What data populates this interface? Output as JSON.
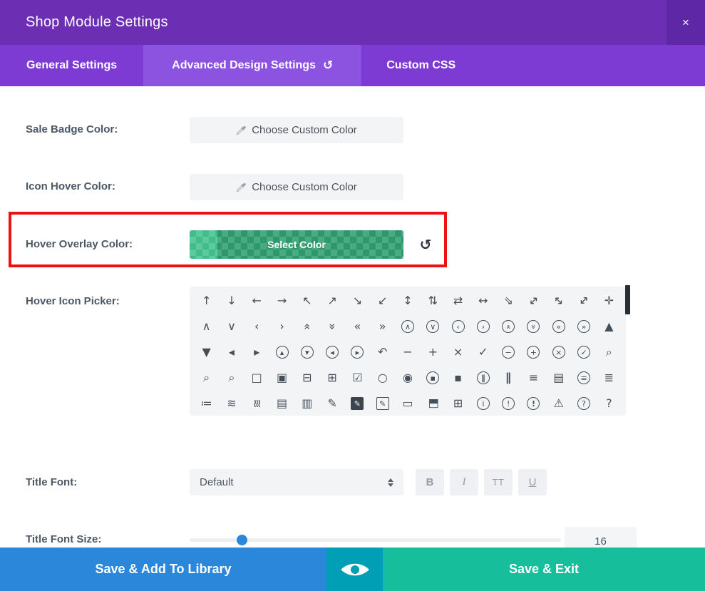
{
  "header": {
    "title": "Shop Module Settings",
    "close_glyph": "×"
  },
  "tabs": [
    {
      "label": "General Settings",
      "active": false
    },
    {
      "label": "Advanced Design Settings",
      "active": true,
      "reset_glyph": "↺"
    },
    {
      "label": "Custom CSS",
      "active": false
    }
  ],
  "colors": {
    "header-purple": "#6c2eb2",
    "close-purple": "#5e27a6",
    "tabbar-purple": "#7d3bd3",
    "active-tab-purple": "#8c52e0",
    "highlight-red": "#ed1212",
    "swatch-green": "#2f9d6f",
    "swatch-light": "#43c28e",
    "footer-blue": "#2b87da",
    "footer-teal": "#009fb5",
    "footer-green": "#17be9b",
    "slider-blue": "#2b87da"
  },
  "rows": {
    "sale_badge": {
      "label": "Sale Badge Color:",
      "button": "Choose Custom Color"
    },
    "icon_hover": {
      "label": "Icon Hover Color:",
      "button": "Choose Custom Color"
    },
    "hover_overlay": {
      "label": "Hover Overlay Color:",
      "button": "Select Color",
      "reset_glyph": "↺"
    },
    "icon_picker": {
      "label": "Hover Icon Picker:"
    },
    "title_font": {
      "label": "Title Font:",
      "value": "Default",
      "style_buttons": {
        "bold": "B",
        "italic": "I",
        "caps": "TT",
        "underline": "U"
      }
    },
    "title_font_size": {
      "label": "Title Font Size:",
      "value": "16",
      "slider_percent": 14
    }
  },
  "icon_picker": {
    "icons": [
      {
        "n": "arrow-up",
        "g": "↑"
      },
      {
        "n": "arrow-down",
        "g": "↓"
      },
      {
        "n": "arrow-left",
        "g": "←"
      },
      {
        "n": "arrow-right",
        "g": "→"
      },
      {
        "n": "arrow-up-left",
        "g": "↖"
      },
      {
        "n": "arrow-up-right",
        "g": "↗"
      },
      {
        "n": "arrow-down-right",
        "g": "↘"
      },
      {
        "n": "arrow-down-left",
        "g": "↙"
      },
      {
        "n": "arrow-up-down",
        "g": "↕"
      },
      {
        "n": "arrow-up-down-alt",
        "g": "⇅"
      },
      {
        "n": "arrow-left-right-small",
        "g": "⇄"
      },
      {
        "n": "arrow-left-right",
        "g": "↔"
      },
      {
        "n": "arrow-diagonal-down-right",
        "g": "⇘"
      },
      {
        "n": "expand-diagonal",
        "g": "↔",
        "r": -45
      },
      {
        "n": "contract-diagonal",
        "g": "↔",
        "r": 45
      },
      {
        "n": "expand-diagonal-alt",
        "g": "↕",
        "r": 45
      },
      {
        "n": "move",
        "g": "✛"
      },
      {
        "n": "chevron-up",
        "g": "∧"
      },
      {
        "n": "chevron-down",
        "g": "∨"
      },
      {
        "n": "chevron-left",
        "g": "‹"
      },
      {
        "n": "chevron-right",
        "g": "›"
      },
      {
        "n": "chevrons-up",
        "g": "«",
        "r": 90
      },
      {
        "n": "chevrons-down",
        "g": "»",
        "r": 90
      },
      {
        "n": "chevrons-left",
        "g": "«"
      },
      {
        "n": "chevrons-right",
        "g": "»"
      },
      {
        "n": "chevron-up-circle",
        "g": "∧",
        "c": 1
      },
      {
        "n": "chevron-down-circle",
        "g": "∨",
        "c": 1
      },
      {
        "n": "chevron-left-circle",
        "g": "‹",
        "c": 1
      },
      {
        "n": "chevron-right-circle",
        "g": "›",
        "c": 1
      },
      {
        "n": "chevrons-up-circle",
        "g": "«",
        "r": 90,
        "c": 1
      },
      {
        "n": "chevrons-down-circle",
        "g": "»",
        "r": 90,
        "c": 1
      },
      {
        "n": "chevrons-left-circle",
        "g": "«",
        "c": 1
      },
      {
        "n": "chevrons-right-circle",
        "g": "»",
        "c": 1
      },
      {
        "n": "caret-up",
        "g": "▲"
      },
      {
        "n": "caret-down",
        "g": "▼"
      },
      {
        "n": "caret-left",
        "g": "◂"
      },
      {
        "n": "caret-right",
        "g": "▸"
      },
      {
        "n": "caret-up-circle",
        "g": "▴",
        "c": 1
      },
      {
        "n": "caret-down-circle",
        "g": "▾",
        "c": 1
      },
      {
        "n": "caret-left-circle",
        "g": "◂",
        "c": 1
      },
      {
        "n": "caret-right-circle",
        "g": "▸",
        "c": 1
      },
      {
        "n": "undo",
        "g": "↶"
      },
      {
        "n": "minus",
        "g": "−"
      },
      {
        "n": "plus",
        "g": "+"
      },
      {
        "n": "close",
        "g": "×"
      },
      {
        "n": "check",
        "g": "✓"
      },
      {
        "n": "minus-circle",
        "g": "−",
        "c": 1
      },
      {
        "n": "plus-circle",
        "g": "+",
        "c": 1
      },
      {
        "n": "close-circle",
        "g": "×",
        "c": 1
      },
      {
        "n": "check-circle",
        "g": "✓",
        "c": 1
      },
      {
        "n": "zoom-out",
        "g": "⌕"
      },
      {
        "n": "zoom-in",
        "g": "⌕"
      },
      {
        "n": "search",
        "g": "⌕"
      },
      {
        "n": "square",
        "g": "□"
      },
      {
        "n": "square-filled",
        "g": "▣"
      },
      {
        "n": "square-minus",
        "g": "⊟"
      },
      {
        "n": "square-plus",
        "g": "⊞"
      },
      {
        "n": "checkbox",
        "g": "☑"
      },
      {
        "n": "circle",
        "g": "○"
      },
      {
        "n": "radio",
        "g": "◉"
      },
      {
        "n": "stop-circle",
        "g": "▪",
        "c": 1
      },
      {
        "n": "square-small",
        "g": "▪"
      },
      {
        "n": "pause-circle",
        "g": "∥",
        "c": 1,
        "w": 1
      },
      {
        "n": "pause",
        "g": "∥",
        "w": 1
      },
      {
        "n": "menu",
        "g": "≡"
      },
      {
        "n": "text-document",
        "g": "▤"
      },
      {
        "n": "menu-circle",
        "g": "≡",
        "c": 1
      },
      {
        "n": "list",
        "g": "≣"
      },
      {
        "n": "list-ordered",
        "g": "≔"
      },
      {
        "n": "sliders-horizontal",
        "g": "≋"
      },
      {
        "n": "sliders-vertical",
        "g": "≋",
        "r": 90
      },
      {
        "n": "document",
        "g": "▤"
      },
      {
        "n": "documents",
        "g": "▥"
      },
      {
        "n": "pencil",
        "g": "✎"
      },
      {
        "n": "edit-box-filled",
        "g": "✎",
        "b": 1,
        "i": 1
      },
      {
        "n": "edit-box",
        "g": "✎",
        "b": 1
      },
      {
        "n": "folder",
        "g": "▭"
      },
      {
        "n": "folder-open",
        "g": "◨",
        "r": -90
      },
      {
        "n": "folder-add",
        "g": "⊞"
      },
      {
        "n": "info-circle",
        "g": "i",
        "c": 1
      },
      {
        "n": "exclamation-circle",
        "g": "!",
        "c": 1
      },
      {
        "n": "exclamation-circle-bold",
        "g": "!",
        "c": 1,
        "w": 1
      },
      {
        "n": "warning-triangle",
        "g": "⚠"
      },
      {
        "n": "question-circle",
        "g": "?",
        "c": 1
      },
      {
        "n": "question",
        "g": "?"
      }
    ]
  },
  "footer": {
    "save_library": "Save & Add To Library",
    "save_exit": "Save & Exit"
  }
}
